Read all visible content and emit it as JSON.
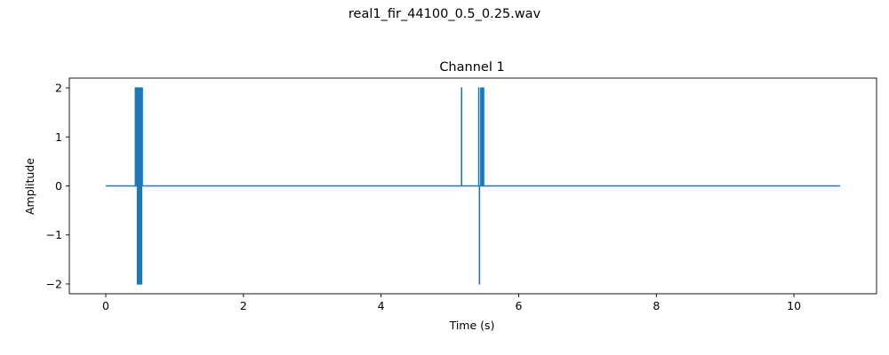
{
  "figure": {
    "suptitle": "real1_fir_44100_0.5_0.25.wav"
  },
  "chart_data": {
    "type": "line",
    "title": "Channel 1",
    "xlabel": "Time (s)",
    "ylabel": "Amplitude",
    "xlim": [
      -0.53,
      11.2
    ],
    "ylim": [
      -2.2,
      2.2
    ],
    "xticks": [
      0,
      2,
      4,
      6,
      8,
      10
    ],
    "yticks": [
      -2,
      -1,
      0,
      1,
      2
    ],
    "grid": false,
    "color": "#1f77b4",
    "series": [
      {
        "x": [
          0,
          0.43,
          0.43,
          0.43,
          0.44,
          0.44,
          0.44,
          0.45,
          0.45,
          0.45,
          0.46,
          0.46,
          0.46,
          0.47,
          0.47,
          0.47,
          0.48,
          0.48,
          0.48,
          0.49,
          0.49,
          0.49,
          0.5,
          0.5,
          0.5,
          0.51,
          0.51,
          0.51,
          0.52,
          0.52,
          0.52,
          0.53,
          0.53,
          0.53,
          5.17,
          5.17,
          5.17,
          5.42,
          5.42,
          5.42,
          5.43,
          5.43,
          5.43,
          5.45,
          5.45,
          5.45,
          5.47,
          5.47,
          5.47,
          5.49,
          5.49,
          5.49,
          10.67
        ],
        "y": [
          0,
          0,
          2,
          0,
          0,
          2,
          0,
          0,
          2,
          0,
          0,
          -2,
          0,
          0,
          2,
          0,
          0,
          -2,
          0,
          0,
          2,
          0,
          0,
          -2,
          0,
          0,
          2,
          0,
          0,
          -2,
          0,
          0,
          2,
          0,
          0,
          2,
          0,
          0,
          2,
          0,
          0,
          -2,
          0,
          0,
          2,
          0,
          0,
          2,
          0,
          0,
          2,
          0,
          0
        ]
      }
    ]
  }
}
